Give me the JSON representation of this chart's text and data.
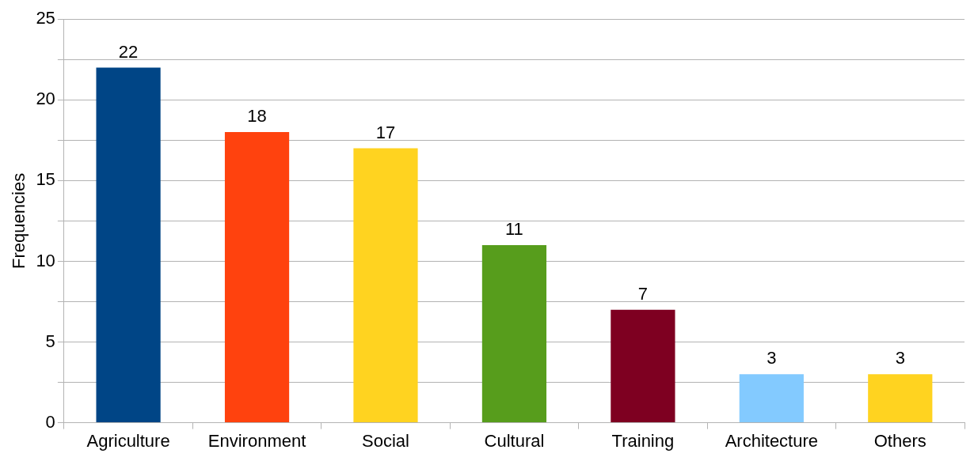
{
  "chart_data": {
    "type": "bar",
    "ylabel": "Frequencies",
    "categories": [
      "Agriculture",
      "Environment",
      "Social",
      "Cultural",
      "Training",
      "Architecture",
      "Others"
    ],
    "values": [
      22,
      18,
      17,
      11,
      7,
      3,
      3
    ],
    "colors": [
      "#004586",
      "#ff420e",
      "#ffd320",
      "#579d1c",
      "#7e0021",
      "#83caff",
      "#ffd320"
    ],
    "ylim": [
      0,
      25
    ],
    "yticks": [
      0,
      {
        "value": 2.5,
        "label": null
      },
      5,
      {
        "value": 7.5,
        "label": null
      },
      10,
      {
        "value": 12.5,
        "label": null
      },
      15,
      {
        "value": 17.5,
        "label": null
      },
      20,
      {
        "value": 22.5,
        "label": null
      },
      25
    ],
    "grid": "y",
    "data_labels": true,
    "legend": false
  }
}
